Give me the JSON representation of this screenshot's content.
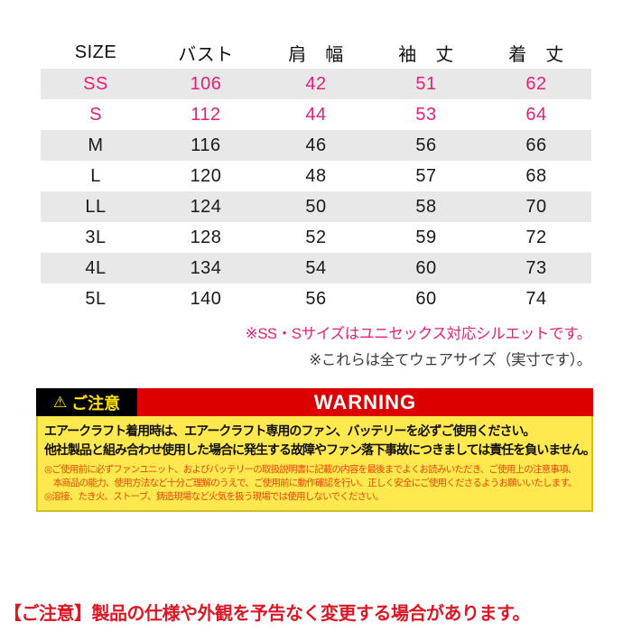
{
  "size_table": {
    "headers": [
      "SIZE",
      "バスト",
      "肩　幅",
      "袖　丈",
      "着　丈"
    ],
    "rows": [
      {
        "size": "SS",
        "bust": "106",
        "shoulder": "42",
        "sleeve": "51",
        "length": "62"
      },
      {
        "size": "S",
        "bust": "112",
        "shoulder": "44",
        "sleeve": "53",
        "length": "64"
      },
      {
        "size": "M",
        "bust": "116",
        "shoulder": "46",
        "sleeve": "56",
        "length": "66"
      },
      {
        "size": "L",
        "bust": "120",
        "shoulder": "48",
        "sleeve": "57",
        "length": "68"
      },
      {
        "size": "LL",
        "bust": "124",
        "shoulder": "50",
        "sleeve": "58",
        "length": "70"
      },
      {
        "size": "3L",
        "bust": "128",
        "shoulder": "52",
        "sleeve": "59",
        "length": "72"
      },
      {
        "size": "4L",
        "bust": "134",
        "shoulder": "54",
        "sleeve": "60",
        "length": "73"
      },
      {
        "size": "5L",
        "bust": "140",
        "shoulder": "56",
        "sleeve": "60",
        "length": "74"
      }
    ]
  },
  "notes": {
    "unisex": "※SS・Sサイズはユニセックス対応シルエットです。",
    "wear_size": "※これらは全てウェアサイズ（実寸です）。"
  },
  "warning": {
    "icon": "⚠",
    "label": "ご注意",
    "banner": "WARNING",
    "bold_line_1": "エアークラフト着用時は、エアークラフト専用のファン、バッテリーを必ずご使用ください。",
    "bold_line_2": "他社製品と組み合わせ使用した場合に発生する故障やファン落下事故につきましては責任を負いません。",
    "small_line_1": "◎ご使用前に必ずファンユニット、およびバッテリーの取扱説明書に記載の内容を最後までよくお読みいただき、ご使用上の注意事項、",
    "small_line_2": "　本商品の能力、使用方法など十分ご理解のうえで、ご使用前に動作確認を行い、正しく安全にご使用くださるようお願いいたします。",
    "small_line_3": "◎溶接、たき火、ストーブ、鋳造現場など火気を扱う現場では使用しないでください。"
  },
  "footer": {
    "note": "【ご注意】製品の仕様や外観を予告なく変更する場合があります。"
  },
  "colors": {
    "accent_pink": "#e61e78",
    "row_stripe_gray": "#e8e8e8",
    "banner_red": "#dd0000",
    "label_yellow_text": "#ffe100",
    "warning_bg_yellow": "#ffe94e",
    "warning_border_olive": "#cfc02a",
    "warning_small_text": "#e94709",
    "footer_red": "#dc1825"
  }
}
